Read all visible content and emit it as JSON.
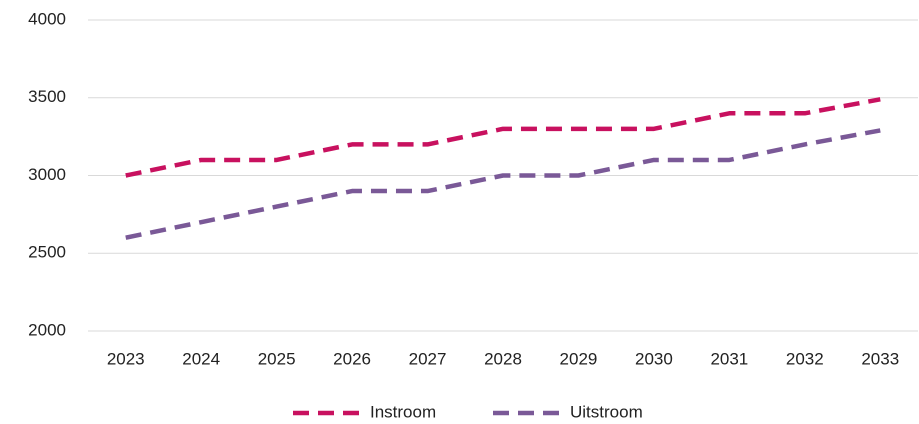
{
  "chart_data": {
    "type": "line",
    "categories": [
      "2023",
      "2024",
      "2025",
      "2026",
      "2027",
      "2028",
      "2029",
      "2030",
      "2031",
      "2032",
      "2033"
    ],
    "series": [
      {
        "name": "Instroom",
        "color": "#c8115f",
        "values": [
          3000,
          3100,
          3100,
          3200,
          3200,
          3300,
          3300,
          3300,
          3400,
          3400,
          3490
        ]
      },
      {
        "name": "Uitstroom",
        "color": "#7a5997",
        "values": [
          2600,
          2700,
          2800,
          2900,
          2900,
          3000,
          3000,
          3100,
          3100,
          3200,
          3290
        ]
      }
    ],
    "ylim": [
      2000,
      4000
    ],
    "yticks": [
      2000,
      2500,
      3000,
      3500,
      4000
    ],
    "grid": true,
    "dashed": true,
    "legend": "bottom"
  }
}
